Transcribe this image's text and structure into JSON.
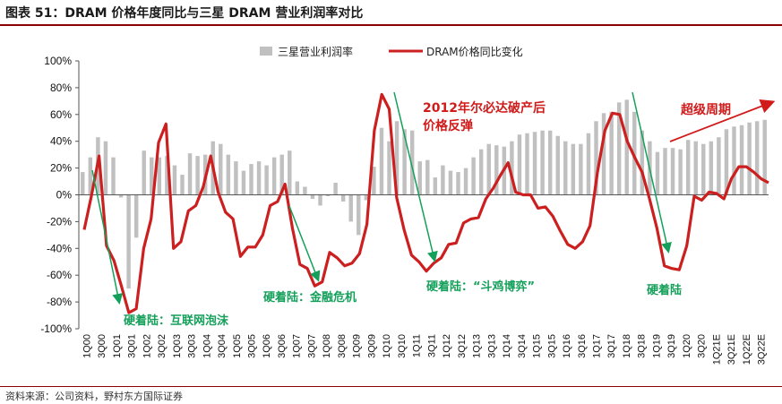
{
  "header": {
    "title": "图表 51：DRAM 价格年度同比与三星 DRAM 营业利润率对比"
  },
  "footer": {
    "source": "资料来源：公司资料，野村东方国际证券"
  },
  "chart_data": {
    "type": "bar+line",
    "title": "图表 51：DRAM 价格年度同比与三星 DRAM 营业利润率对比",
    "ylim": [
      -100,
      100
    ],
    "yticks": [
      -100,
      -80,
      -60,
      -40,
      -20,
      0,
      20,
      40,
      60,
      80,
      100
    ],
    "ytick_labels": [
      "-100%",
      "-80%",
      "-60%",
      "-40%",
      "-20%",
      "0%",
      "20%",
      "40%",
      "60%",
      "80%",
      "100%"
    ],
    "x_labels": [
      "1Q00",
      "3Q00",
      "1Q01",
      "3Q01",
      "1Q02",
      "3Q02",
      "1Q03",
      "3Q03",
      "1Q04",
      "3Q04",
      "1Q05",
      "3Q05",
      "1Q06",
      "3Q06",
      "1Q07",
      "3Q07",
      "1Q08",
      "3Q08",
      "1Q09",
      "3Q09",
      "1Q10",
      "3Q10",
      "1Q11",
      "3Q11",
      "1Q12",
      "3Q12",
      "1Q13",
      "3Q13",
      "1Q14",
      "3Q14",
      "1Q15",
      "3Q15",
      "1Q16",
      "3Q16",
      "1Q17",
      "3Q17",
      "1Q18",
      "3Q18",
      "1Q19",
      "3Q19",
      "1Q20",
      "3Q20",
      "1Q21E",
      "3Q21E",
      "1Q22E",
      "3Q22E"
    ],
    "legend": [
      "三星营业利润率",
      "DRAM价格同比变化"
    ],
    "series": [
      {
        "name": "三星营业利润率",
        "type": "bar",
        "color": "#c0c0c0",
        "values": [
          17,
          28,
          43,
          40,
          28,
          -2,
          -70,
          -32,
          33,
          28,
          28,
          29,
          22,
          15,
          31,
          29,
          30,
          40,
          38,
          30,
          25,
          18,
          23,
          25,
          22,
          28,
          30,
          33,
          10,
          6,
          -3,
          -8,
          -1,
          9,
          -5,
          -20,
          -30,
          -4,
          21,
          50,
          40,
          55,
          49,
          48,
          25,
          26,
          13,
          22,
          18,
          17,
          20,
          28,
          34,
          38,
          37,
          36,
          40,
          45,
          46,
          47,
          48,
          48,
          44,
          40,
          38,
          38,
          46,
          55,
          61,
          62,
          69,
          71,
          62,
          48,
          40,
          32,
          35,
          35,
          34,
          41,
          40,
          38,
          40,
          43,
          49,
          51,
          52,
          54,
          55,
          56
        ]
      },
      {
        "name": "DRAM价格同比变化",
        "type": "line",
        "color": "#cc1f1f",
        "values": [
          -26,
          0,
          29,
          -38,
          -49,
          -68,
          -88,
          -85,
          -40,
          -18,
          39,
          53,
          -40,
          -35,
          -12,
          -8,
          6,
          29,
          2,
          -13,
          -18,
          -46,
          -39,
          -39,
          -30,
          -8,
          -5,
          8,
          -25,
          -52,
          -55,
          -68,
          -65,
          -43,
          -47,
          -53,
          -51,
          -44,
          -22,
          48,
          75,
          64,
          -2,
          -26,
          -45,
          -50,
          -57,
          -51,
          -47,
          -37,
          -36,
          -21,
          -18,
          -17,
          -3,
          5,
          15,
          24,
          2,
          0,
          0,
          -10,
          -9,
          -16,
          -27,
          -37,
          -40,
          -35,
          -23,
          17,
          48,
          61,
          60,
          40,
          28,
          17,
          -3,
          -25,
          -53,
          -55,
          -56,
          -38,
          -1,
          -4,
          2,
          1,
          -3,
          12,
          21,
          21,
          17,
          12,
          9
        ]
      }
    ],
    "annotations": {
      "red": [
        "2012年尔必达破产后",
        "价格反弹",
        "超级周期"
      ],
      "green": [
        "硬着陆：互联网泡沫",
        "硬着陆：金融危机",
        "硬着陆：“斗鸡博弈”",
        "硬着陆"
      ]
    }
  }
}
